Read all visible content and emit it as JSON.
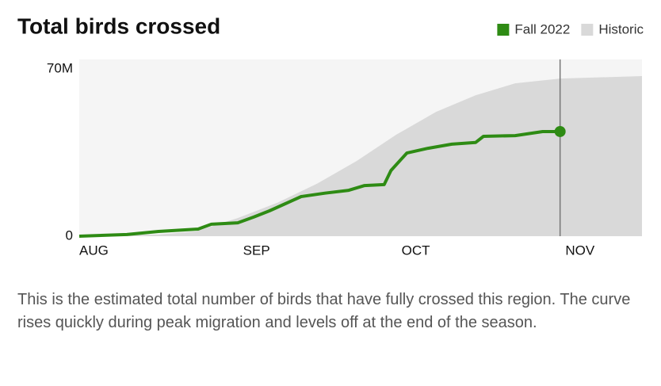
{
  "chart_data": {
    "type": "line",
    "title": "Total birds crossed",
    "description": "This is the estimated total number of birds that have fully crossed this region. The curve rises quickly during peak migration and levels off at the end of the season.",
    "xlim": [
      0,
      106.5
    ],
    "xticks": [
      {
        "value": 0,
        "label": "AUG"
      },
      {
        "value": 31,
        "label": "SEP"
      },
      {
        "value": 61,
        "label": "OCT"
      },
      {
        "value": 92,
        "label": "NOV"
      }
    ],
    "ylim": [
      0,
      70000000
    ],
    "yticks": [
      0,
      {
        "value": 70000000,
        "label": "70M"
      }
    ],
    "series": [
      {
        "name": "Historic",
        "color": "#d9d9d9",
        "style": "area",
        "x": [
          0,
          15,
          22,
          30,
          37.5,
          45,
          52.5,
          60,
          67.5,
          75,
          82.5,
          91,
          106.5
        ],
        "values": [
          0,
          700000,
          2000000,
          7600000,
          14000000,
          22000000,
          31500000,
          42500000,
          52000000,
          59000000,
          64000000,
          66000000,
          67000000
        ]
      },
      {
        "name": "Fall 2022",
        "color": "#2e8b14",
        "style": "line",
        "x": [
          0,
          9,
          15,
          22.5,
          25,
          30,
          33,
          36,
          39,
          42,
          46.5,
          51,
          54,
          57.7,
          59,
          62,
          66,
          70.5,
          75,
          76.5,
          82.5,
          87.7,
          91
        ],
        "values": [
          0,
          700000,
          2000000,
          3000000,
          5000000,
          5600000,
          8000000,
          10600000,
          13600000,
          16600000,
          18000000,
          19200000,
          21200000,
          21600000,
          27500000,
          34800000,
          36800000,
          38500000,
          39200000,
          41800000,
          42100000,
          43800000,
          43800000
        ]
      }
    ]
  }
}
